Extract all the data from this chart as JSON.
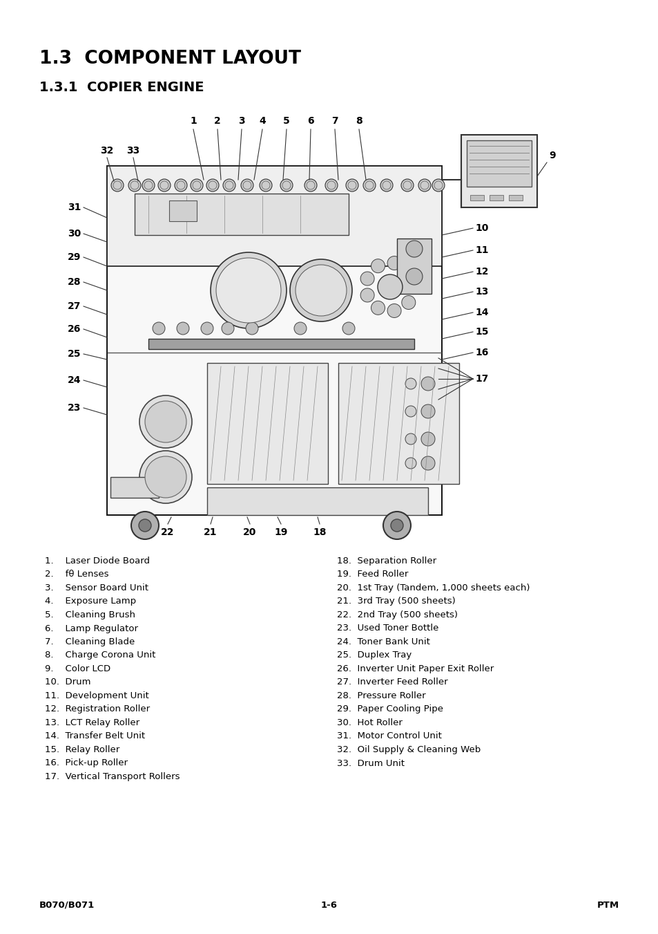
{
  "title1": "1.3  COMPONENT LAYOUT",
  "title2": "1.3.1  COPIER ENGINE",
  "bg_color": "#ffffff",
  "text_color": "#000000",
  "left_items": [
    "1.    Laser Diode Board",
    "2.    fθ Lenses",
    "3.    Sensor Board Unit",
    "4.    Exposure Lamp",
    "5.    Cleaning Brush",
    "6.    Lamp Regulator",
    "7.    Cleaning Blade",
    "8.    Charge Corona Unit",
    "9.    Color LCD",
    "10.  Drum",
    "11.  Development Unit",
    "12.  Registration Roller",
    "13.  LCT Relay Roller",
    "14.  Transfer Belt Unit",
    "15.  Relay Roller",
    "16.  Pick-up Roller",
    "17.  Vertical Transport Rollers"
  ],
  "right_items": [
    "18.  Separation Roller",
    "19.  Feed Roller",
    "20.  1st Tray (Tandem, 1,000 sheets each)",
    "21.  3rd Tray (500 sheets)",
    "22.  2nd Tray (500 sheets)",
    "23.  Used Toner Bottle",
    "24.  Toner Bank Unit",
    "25.  Duplex Tray",
    "26.  Inverter Unit Paper Exit Roller",
    "27.  Inverter Feed Roller",
    "28.  Pressure Roller",
    "29.  Paper Cooling Pipe",
    "30.  Hot Roller",
    "31.  Motor Control Unit",
    "32.  Oil Supply & Cleaning Web",
    "33.  Drum Unit"
  ],
  "footer_left": "B070/B071",
  "footer_center": "1-6",
  "footer_right": "PTM"
}
